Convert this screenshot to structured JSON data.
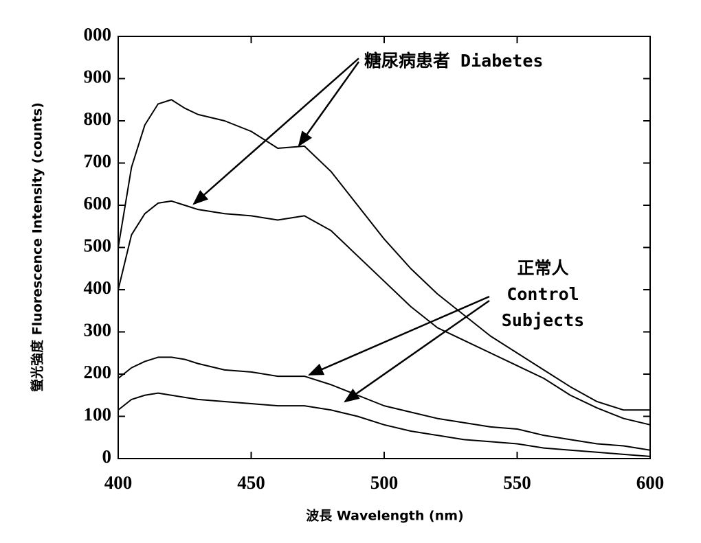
{
  "chart_data": {
    "type": "line",
    "x_label": "波長 Wavelength (nm)",
    "y_label": "螢光強度 Fluorescence Intensity (counts)",
    "x": [
      400,
      405,
      410,
      415,
      420,
      425,
      430,
      440,
      450,
      460,
      470,
      480,
      490,
      500,
      510,
      520,
      530,
      540,
      550,
      560,
      570,
      580,
      590,
      600
    ],
    "series": [
      {
        "color": "#000000",
        "values": [
          500,
          690,
          790,
          840,
          850,
          830,
          815,
          800,
          775,
          735,
          740,
          680,
          600,
          520,
          450,
          390,
          340,
          290,
          250,
          210,
          170,
          135,
          115,
          115
        ]
      },
      {
        "color": "#000000",
        "values": [
          400,
          530,
          580,
          605,
          610,
          600,
          590,
          580,
          575,
          565,
          575,
          540,
          480,
          420,
          360,
          310,
          280,
          250,
          220,
          190,
          150,
          120,
          95,
          80
        ]
      },
      {
        "color": "#000000",
        "values": [
          190,
          215,
          230,
          240,
          240,
          235,
          225,
          210,
          205,
          195,
          195,
          175,
          150,
          125,
          110,
          95,
          85,
          75,
          70,
          55,
          45,
          35,
          30,
          20
        ]
      },
      {
        "color": "#000000",
        "values": [
          115,
          140,
          150,
          155,
          150,
          145,
          140,
          135,
          130,
          125,
          125,
          115,
          100,
          80,
          65,
          55,
          45,
          40,
          35,
          25,
          20,
          15,
          10,
          5
        ]
      }
    ],
    "xlim": [
      400,
      600
    ],
    "xticks": [
      400,
      450,
      500,
      550,
      600
    ],
    "ylim": [
      0,
      1000
    ],
    "yticks": [
      0,
      100,
      200,
      300,
      400,
      500,
      600,
      700,
      800,
      900,
      {
        "value": 1000,
        "label": "000"
      }
    ],
    "annotations": [
      {
        "lines": [
          "糖尿病患者 Diabetes"
        ]
      },
      {
        "lines": [
          "正常人",
          "Control",
          "Subjects"
        ]
      }
    ]
  }
}
